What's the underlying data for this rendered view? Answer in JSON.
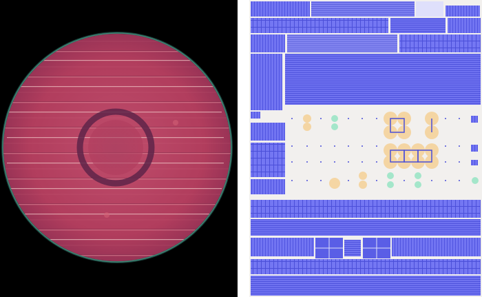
{
  "panels": {
    "wafer": {
      "name": "wafer-photo",
      "colors": {
        "background": "#000000",
        "wafer": "#b3405f",
        "edge": "#2f7a6a",
        "ring": "#6d2a4a"
      }
    },
    "layout": {
      "name": "chip-layout",
      "colors": {
        "background": "#f2f0ee",
        "cell": "#6b6ef0",
        "cell_dark": "#4a4ed8",
        "pad_orange": "#f3cf91",
        "pad_green": "#9fe3c7"
      }
    }
  }
}
